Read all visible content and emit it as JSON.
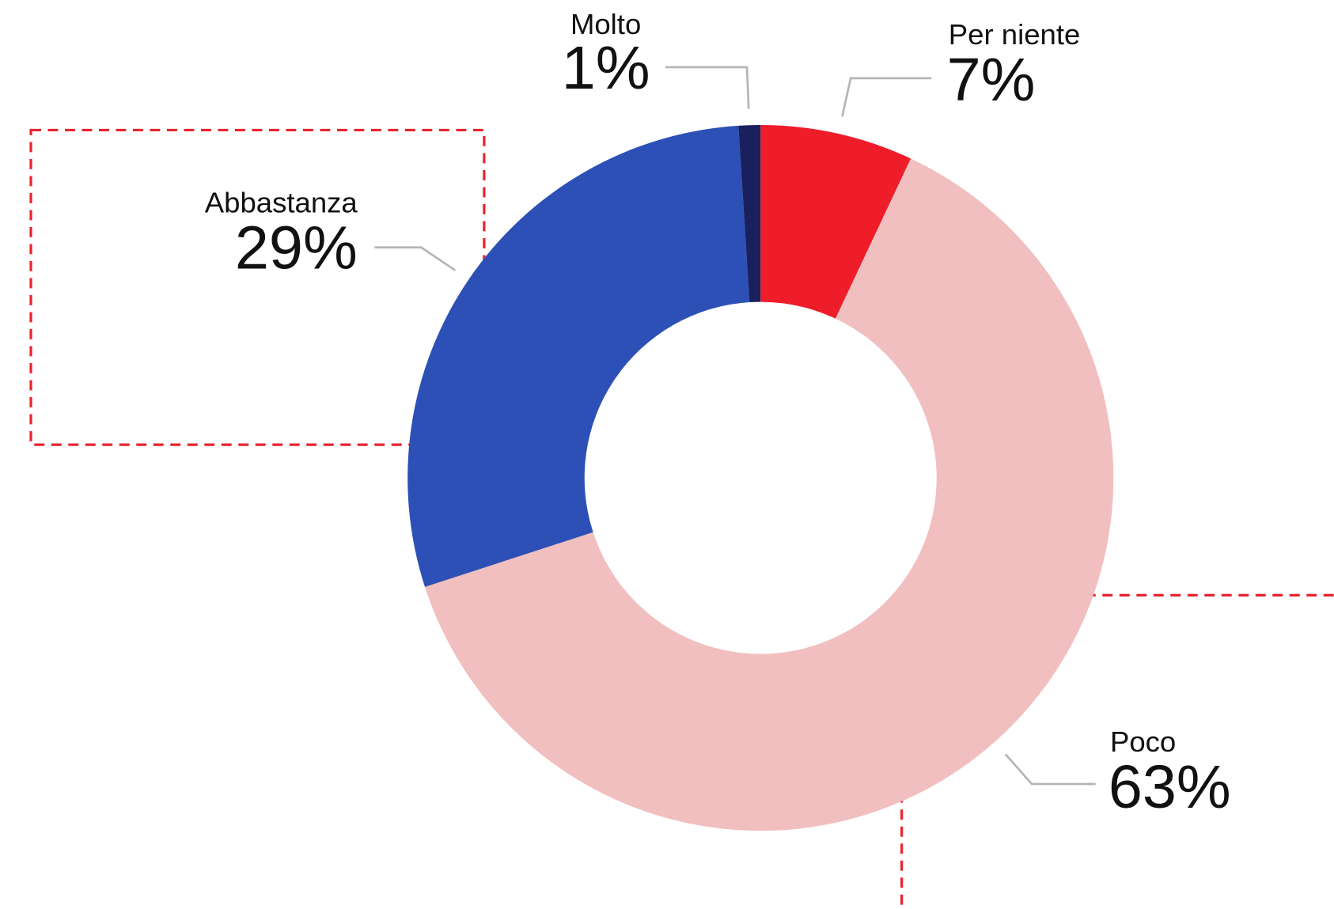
{
  "chart_data": {
    "type": "donut",
    "categories": [
      "Per niente",
      "Poco",
      "Abbastanza",
      "Molto"
    ],
    "values": [
      7,
      63,
      29,
      1
    ],
    "value_labels": [
      "7%",
      "63%",
      "29%",
      "1%"
    ],
    "colors": [
      "#ef1c2a",
      "#f1bfbf",
      "#2c50b5",
      "#1a1f5e"
    ]
  }
}
